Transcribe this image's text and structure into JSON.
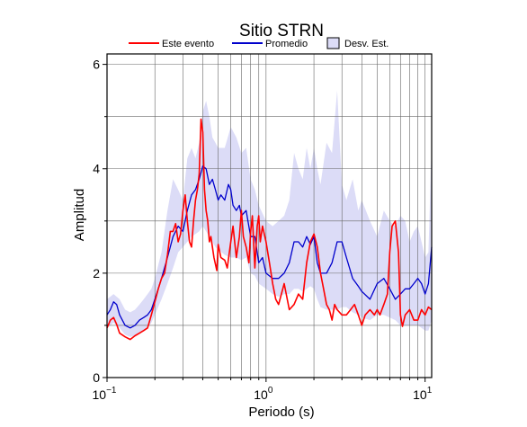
{
  "chart_data": {
    "type": "line",
    "title": "Sitio STRN",
    "xlabel": "Periodo (s)",
    "ylabel": "Amplitud",
    "x_scale": "log",
    "xlim": [
      0.1,
      11
    ],
    "ylim": [
      0,
      6.2
    ],
    "grid": true,
    "legend_position": "top",
    "x_ticks": [
      {
        "value": 0.1,
        "base": "10",
        "exp": "−1"
      },
      {
        "value": 1,
        "base": "10",
        "exp": "0"
      },
      {
        "value": 10,
        "base": "10",
        "exp": "1"
      }
    ],
    "y_ticks": [
      0,
      2,
      4,
      6
    ],
    "legend": {
      "event_label": "Este evento",
      "mean_label": "Promedio",
      "std_label": "Desv. Est."
    },
    "colors": {
      "event": "#ff0000",
      "mean": "#0000cc",
      "band_fill": "#dcdcf7",
      "grid": "#666666"
    },
    "series": [
      {
        "name": "Este evento",
        "x": [
          0.1,
          0.105,
          0.11,
          0.115,
          0.12,
          0.13,
          0.14,
          0.15,
          0.16,
          0.17,
          0.18,
          0.19,
          0.2,
          0.21,
          0.22,
          0.23,
          0.24,
          0.25,
          0.26,
          0.27,
          0.28,
          0.29,
          0.3,
          0.31,
          0.32,
          0.33,
          0.34,
          0.35,
          0.36,
          0.37,
          0.38,
          0.39,
          0.4,
          0.41,
          0.42,
          0.43,
          0.44,
          0.45,
          0.47,
          0.49,
          0.5,
          0.52,
          0.55,
          0.57,
          0.6,
          0.62,
          0.65,
          0.68,
          0.7,
          0.72,
          0.75,
          0.78,
          0.8,
          0.82,
          0.85,
          0.88,
          0.9,
          0.92,
          0.95,
          1.0,
          1.05,
          1.1,
          1.15,
          1.2,
          1.3,
          1.4,
          1.5,
          1.6,
          1.7,
          1.8,
          1.9,
          2.0,
          2.1,
          2.2,
          2.3,
          2.4,
          2.5,
          2.6,
          2.7,
          2.8,
          3.0,
          3.2,
          3.4,
          3.6,
          3.8,
          4.0,
          4.2,
          4.5,
          4.8,
          5.0,
          5.2,
          5.5,
          5.8,
          6.0,
          6.2,
          6.5,
          6.8,
          7.0,
          7.2,
          7.5,
          8.0,
          8.5,
          9.0,
          9.5,
          10.0,
          10.5,
          11.0
        ],
        "y": [
          0.95,
          1.1,
          1.15,
          1.02,
          0.85,
          0.78,
          0.73,
          0.8,
          0.85,
          0.9,
          0.95,
          1.2,
          1.45,
          1.7,
          1.9,
          2.0,
          2.35,
          2.8,
          2.8,
          2.95,
          2.6,
          2.75,
          3.2,
          3.5,
          3.0,
          2.6,
          2.5,
          3.0,
          3.4,
          3.6,
          3.9,
          4.95,
          4.7,
          3.6,
          3.2,
          3.0,
          2.6,
          2.7,
          2.3,
          2.05,
          2.55,
          2.3,
          2.25,
          2.1,
          2.6,
          2.9,
          2.3,
          2.7,
          3.2,
          2.7,
          2.5,
          2.2,
          2.8,
          3.1,
          2.1,
          2.9,
          3.1,
          2.6,
          2.9,
          2.6,
          2.2,
          1.8,
          1.5,
          1.4,
          1.8,
          1.3,
          1.4,
          1.6,
          1.5,
          2.2,
          2.6,
          2.75,
          2.5,
          2.0,
          1.7,
          1.4,
          1.3,
          1.1,
          1.4,
          1.3,
          1.2,
          1.2,
          1.3,
          1.4,
          1.2,
          1.0,
          1.2,
          1.3,
          1.2,
          1.3,
          1.2,
          1.4,
          1.6,
          2.4,
          2.9,
          3.0,
          2.4,
          1.2,
          0.98,
          1.2,
          1.3,
          1.1,
          1.1,
          1.3,
          1.2,
          1.35,
          1.3
        ]
      },
      {
        "name": "Promedio",
        "x": [
          0.1,
          0.105,
          0.11,
          0.115,
          0.12,
          0.13,
          0.14,
          0.15,
          0.16,
          0.17,
          0.18,
          0.19,
          0.2,
          0.22,
          0.24,
          0.26,
          0.28,
          0.3,
          0.32,
          0.34,
          0.36,
          0.38,
          0.4,
          0.42,
          0.44,
          0.46,
          0.48,
          0.5,
          0.52,
          0.55,
          0.58,
          0.6,
          0.62,
          0.65,
          0.68,
          0.7,
          0.75,
          0.8,
          0.85,
          0.9,
          0.95,
          1.0,
          1.1,
          1.2,
          1.3,
          1.4,
          1.5,
          1.6,
          1.7,
          1.8,
          1.9,
          2.0,
          2.1,
          2.2,
          2.4,
          2.6,
          2.8,
          3.0,
          3.2,
          3.5,
          3.8,
          4.0,
          4.5,
          5.0,
          5.5,
          6.0,
          6.5,
          7.0,
          7.5,
          8.0,
          8.5,
          9.0,
          9.5,
          10.0,
          10.5,
          11.0
        ],
        "y": [
          1.2,
          1.3,
          1.45,
          1.4,
          1.2,
          1.0,
          0.95,
          1.0,
          1.1,
          1.15,
          1.2,
          1.3,
          1.5,
          1.9,
          2.3,
          2.7,
          2.9,
          2.8,
          3.2,
          3.5,
          3.6,
          3.8,
          4.05,
          4.0,
          3.7,
          3.8,
          3.6,
          3.4,
          3.5,
          3.4,
          3.7,
          3.6,
          3.3,
          3.2,
          3.3,
          3.1,
          3.2,
          2.7,
          2.7,
          2.2,
          2.3,
          2.0,
          1.9,
          1.9,
          2.0,
          2.2,
          2.6,
          2.6,
          2.5,
          2.7,
          2.55,
          2.7,
          2.2,
          2.0,
          2.0,
          2.2,
          2.6,
          2.6,
          2.3,
          1.9,
          1.75,
          1.65,
          1.5,
          1.8,
          1.9,
          1.7,
          1.5,
          1.6,
          1.7,
          1.7,
          1.8,
          1.9,
          1.8,
          1.6,
          1.8,
          2.5
        ]
      },
      {
        "name": "Desv. Est.",
        "x": [
          0.1,
          0.11,
          0.12,
          0.13,
          0.14,
          0.15,
          0.16,
          0.17,
          0.18,
          0.19,
          0.2,
          0.22,
          0.24,
          0.26,
          0.28,
          0.3,
          0.32,
          0.34,
          0.36,
          0.38,
          0.4,
          0.42,
          0.44,
          0.46,
          0.48,
          0.5,
          0.55,
          0.6,
          0.65,
          0.7,
          0.75,
          0.8,
          0.85,
          0.9,
          1.0,
          1.1,
          1.2,
          1.3,
          1.4,
          1.5,
          1.6,
          1.7,
          1.8,
          1.9,
          2.0,
          2.1,
          2.2,
          2.4,
          2.6,
          2.8,
          3.0,
          3.2,
          3.5,
          3.8,
          4.0,
          4.5,
          5.0,
          5.5,
          6.0,
          6.5,
          7.0,
          7.5,
          8.0,
          8.5,
          9.0,
          9.5,
          10.0,
          10.5,
          11.0
        ],
        "lower": [
          0.95,
          1.05,
          0.95,
          0.82,
          0.78,
          0.8,
          0.85,
          0.9,
          0.95,
          1.05,
          1.2,
          1.5,
          1.8,
          2.1,
          2.4,
          2.5,
          2.6,
          2.7,
          2.75,
          2.8,
          2.9,
          2.8,
          2.7,
          2.6,
          2.5,
          2.45,
          2.35,
          2.3,
          2.3,
          2.25,
          2.3,
          2.0,
          1.95,
          1.8,
          1.7,
          1.6,
          1.55,
          1.6,
          1.6,
          1.7,
          1.7,
          1.65,
          1.7,
          1.75,
          1.7,
          1.5,
          1.35,
          1.3,
          1.3,
          1.3,
          1.35,
          1.35,
          1.25,
          1.2,
          1.15,
          1.1,
          1.2,
          1.2,
          1.15,
          1.1,
          1.0,
          1.0,
          1.0,
          1.0,
          1.0,
          0.95,
          0.9,
          0.9,
          1.1
        ],
        "upper": [
          1.5,
          1.6,
          1.5,
          1.3,
          1.25,
          1.3,
          1.4,
          1.5,
          1.6,
          1.7,
          1.9,
          2.4,
          3.2,
          3.8,
          3.6,
          3.4,
          4.2,
          4.4,
          4.2,
          4.5,
          5.1,
          5.3,
          5.0,
          4.6,
          4.5,
          4.4,
          4.4,
          4.8,
          4.6,
          4.3,
          4.4,
          3.8,
          3.6,
          3.3,
          3.0,
          2.9,
          3.0,
          3.1,
          3.4,
          4.3,
          4.0,
          3.8,
          4.4,
          4.0,
          4.4,
          4.0,
          3.7,
          4.5,
          4.3,
          5.5,
          3.7,
          3.4,
          3.8,
          3.2,
          3.4,
          3.0,
          2.7,
          3.2,
          3.0,
          2.9,
          3.1,
          3.0,
          2.6,
          2.8,
          2.9,
          2.6,
          2.3,
          2.4,
          4.5
        ]
      }
    ]
  }
}
